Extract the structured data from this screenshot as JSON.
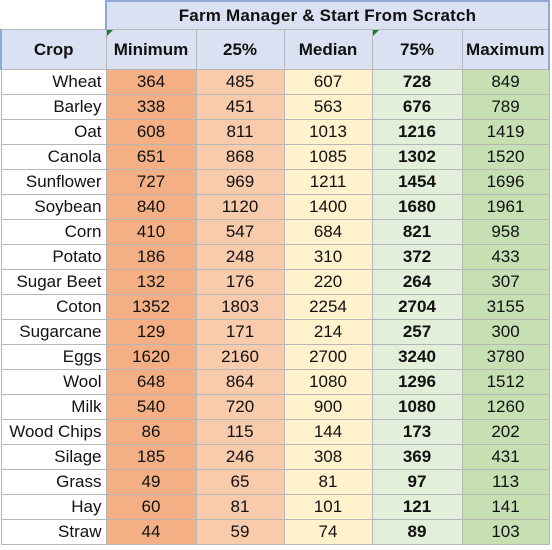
{
  "title": "Farm Manager & Start From Scratch",
  "headers": [
    "Crop",
    "Minimum",
    "25%",
    "Median",
    "75%",
    "Maximum"
  ],
  "rows": [
    {
      "crop": "Wheat",
      "values": [
        "364",
        "485",
        "607",
        "728",
        "849"
      ]
    },
    {
      "crop": "Barley",
      "values": [
        "338",
        "451",
        "563",
        "676",
        "789"
      ]
    },
    {
      "crop": "Oat",
      "values": [
        "608",
        "811",
        "1013",
        "1216",
        "1419"
      ]
    },
    {
      "crop": "Canola",
      "values": [
        "651",
        "868",
        "1085",
        "1302",
        "1520"
      ]
    },
    {
      "crop": "Sunflower",
      "values": [
        "727",
        "969",
        "1211",
        "1454",
        "1696"
      ]
    },
    {
      "crop": "Soybean",
      "values": [
        "840",
        "1120",
        "1400",
        "1680",
        "1961"
      ]
    },
    {
      "crop": "Corn",
      "values": [
        "410",
        "547",
        "684",
        "821",
        "958"
      ]
    },
    {
      "crop": "Potato",
      "values": [
        "186",
        "248",
        "310",
        "372",
        "433"
      ]
    },
    {
      "crop": "Sugar Beet",
      "values": [
        "132",
        "176",
        "220",
        "264",
        "307"
      ]
    },
    {
      "crop": "Coton",
      "values": [
        "1352",
        "1803",
        "2254",
        "2704",
        "3155"
      ]
    },
    {
      "crop": "Sugarcane",
      "values": [
        "129",
        "171",
        "214",
        "257",
        "300"
      ]
    },
    {
      "crop": "Eggs",
      "values": [
        "1620",
        "2160",
        "2700",
        "3240",
        "3780"
      ]
    },
    {
      "crop": "Wool",
      "values": [
        "648",
        "864",
        "1080",
        "1296",
        "1512"
      ]
    },
    {
      "crop": "Milk",
      "values": [
        "540",
        "720",
        "900",
        "1080",
        "1260"
      ]
    },
    {
      "crop": "Wood Chips",
      "values": [
        "86",
        "115",
        "144",
        "173",
        "202"
      ]
    },
    {
      "crop": "Silage",
      "values": [
        "185",
        "246",
        "308",
        "369",
        "431"
      ]
    },
    {
      "crop": "Grass",
      "values": [
        "49",
        "65",
        "81",
        "97",
        "113"
      ]
    },
    {
      "crop": "Hay",
      "values": [
        "60",
        "81",
        "101",
        "121",
        "141"
      ]
    },
    {
      "crop": "Straw",
      "values": [
        "44",
        "59",
        "74",
        "89",
        "103"
      ]
    }
  ],
  "colors": {
    "header_fill": "#d9e1f2",
    "minimum_fill": "#f4b084",
    "p25_fill": "#f8cbad",
    "median_fill": "#fff2cc",
    "p75_fill": "#e2efda",
    "maximum_fill": "#c6e0b4",
    "cell_marker": "#1e7b34"
  }
}
